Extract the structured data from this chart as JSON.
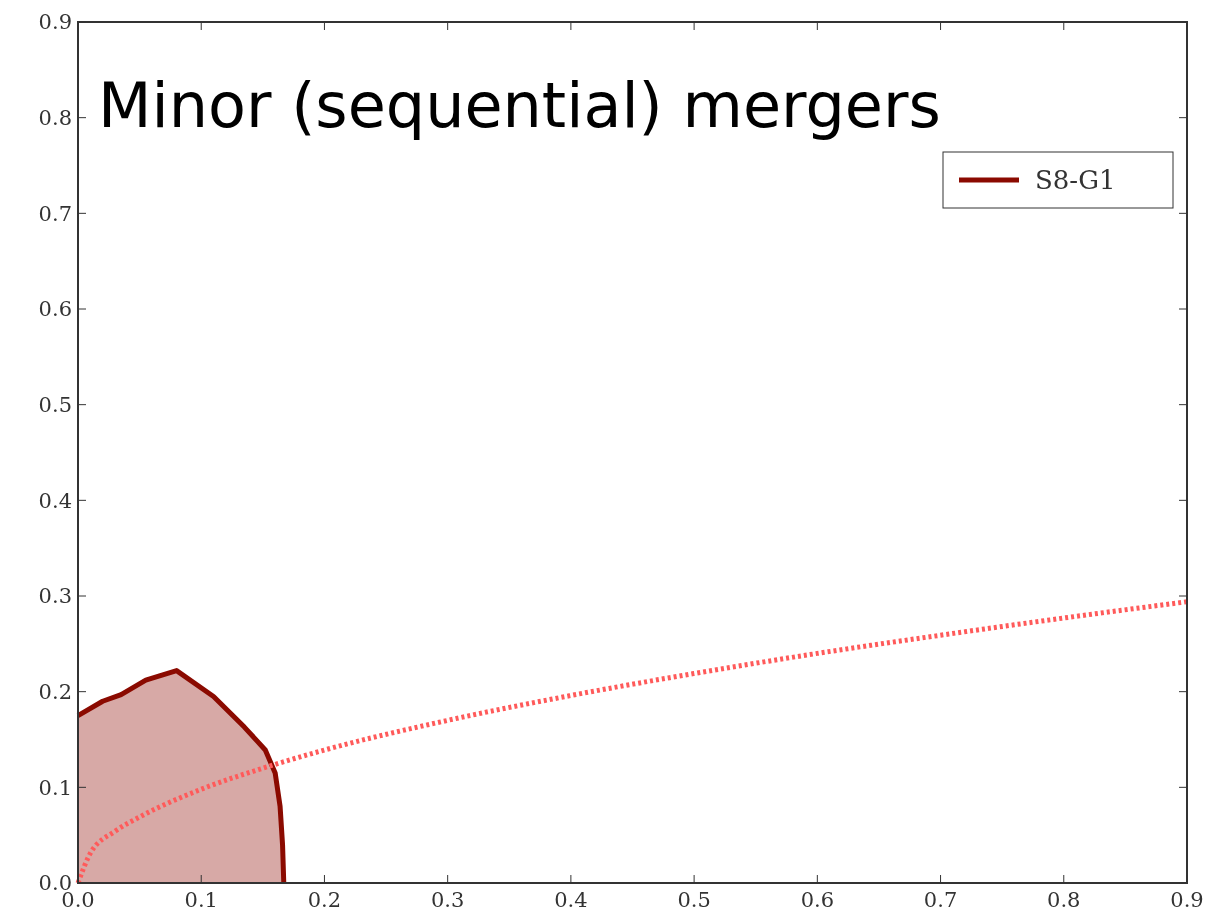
{
  "chart_data": {
    "type": "area",
    "title": "Minor (sequential) mergers",
    "xlim": [
      0,
      0.9
    ],
    "ylim": [
      0,
      0.9
    ],
    "xticks": [
      {
        "value": 0,
        "label": "0.0"
      },
      {
        "value": 0.1,
        "label": "0.1"
      },
      {
        "value": 0.2,
        "label": "0.2"
      },
      {
        "value": 0.3,
        "label": "0.3"
      },
      {
        "value": 0.4,
        "label": "0.4"
      },
      {
        "value": 0.5,
        "label": "0.5"
      },
      {
        "value": 0.6,
        "label": "0.6"
      },
      {
        "value": 0.7,
        "label": "0.7"
      },
      {
        "value": 0.8,
        "label": "0.8"
      },
      {
        "value": 0.9,
        "label": "0.9"
      }
    ],
    "yticks": [
      {
        "value": 0,
        "label": "0.0"
      },
      {
        "value": 0.1,
        "label": "0.1"
      },
      {
        "value": 0.2,
        "label": "0.2"
      },
      {
        "value": 0.3,
        "label": "0.3"
      },
      {
        "value": 0.4,
        "label": "0.4"
      },
      {
        "value": 0.5,
        "label": "0.5"
      },
      {
        "value": 0.6,
        "label": "0.6"
      },
      {
        "value": 0.7,
        "label": "0.7"
      },
      {
        "value": 0.8,
        "label": "0.8"
      },
      {
        "value": 0.9,
        "label": "0.9"
      }
    ],
    "legend": "top right",
    "series": [
      {
        "name": "S8-G1",
        "color": "#8b0a00",
        "x": [
          0,
          0.02,
          0.035,
          0.055,
          0.08,
          0.11,
          0.135,
          0.152,
          0.16,
          0.164,
          0.166,
          0.167
        ],
        "values": [
          0.175,
          0.19,
          0.197,
          0.212,
          0.222,
          0.195,
          0.163,
          0.139,
          0.115,
          0.08,
          0.04,
          0
        ]
      },
      {
        "type": "line",
        "color": "#ff5a5a",
        "line_style": "dotted",
        "x": [
          0,
          0.01,
          0.03,
          0.05,
          0.1,
          0.15,
          0.2,
          0.3,
          0.4,
          0.5,
          0.6,
          0.7,
          0.8,
          0.9
        ],
        "values": [
          0,
          0.031,
          0.054,
          0.069,
          0.098,
          0.12,
          0.139,
          0.17,
          0.196,
          0.219,
          0.24,
          0.259,
          0.277,
          0.294
        ]
      }
    ]
  }
}
